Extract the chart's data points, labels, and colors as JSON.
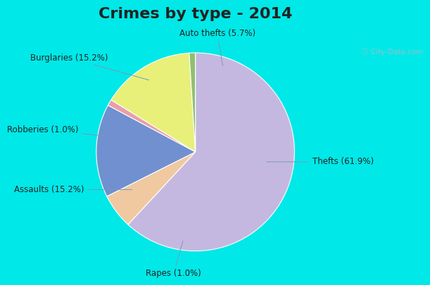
{
  "title": "Crimes by type - 2014",
  "slices": [
    {
      "label": "Thefts (61.9%)",
      "value": 61.9,
      "color": "#c5b8e0"
    },
    {
      "label": "Auto thefts (5.7%)",
      "value": 5.7,
      "color": "#f0c9a0"
    },
    {
      "label": "Burglaries (15.2%)",
      "value": 15.2,
      "color": "#7090d0"
    },
    {
      "label": "Robberies (1.0%)",
      "value": 1.0,
      "color": "#e8a0a8"
    },
    {
      "label": "Assaults (15.2%)",
      "value": 15.2,
      "color": "#e8f07a"
    },
    {
      "label": "Rapes (1.0%)",
      "value": 1.0,
      "color": "#90c070"
    }
  ],
  "title_fontsize": 16,
  "title_color": "#222222",
  "label_fontsize": 8.5,
  "background_color_outer": "#00e8e8",
  "background_color_inner_tl": "#d0ece0",
  "background_color_inner_br": "#e8f0f8",
  "watermark": "City-Data.com"
}
